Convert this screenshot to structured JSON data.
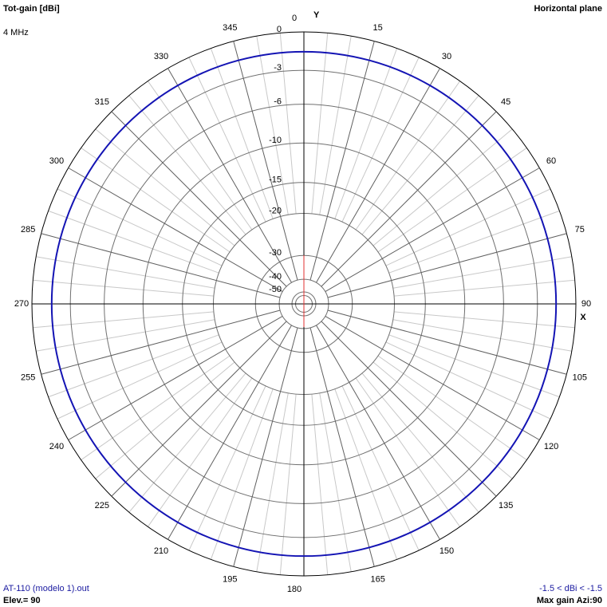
{
  "chart_data": {
    "type": "polar",
    "title": "Tot-gain [dBi]",
    "subtitle": "4 MHz",
    "plane": "Horizontal plane",
    "y_axis_label": "Y",
    "x_axis_label": "X",
    "range_label": "-1.5 < dBi < -1.5",
    "elevation_label": "Elev.= 90",
    "max_gain_label": "Max gain Azi:90",
    "rlim": [
      -50,
      0
    ],
    "rticks": [
      0,
      -3,
      -6,
      -10,
      -15,
      -20,
      -30,
      -40,
      -50
    ],
    "xticks": [
      0,
      15,
      30,
      45,
      60,
      75,
      90,
      105,
      120,
      135,
      150,
      165,
      180,
      195,
      210,
      225,
      240,
      255,
      270,
      285,
      300,
      315,
      330,
      345
    ],
    "grid": true,
    "series": [
      {
        "name": "AT-110 (modelo 1).out",
        "color": "#1414b4",
        "x": [
          0,
          15,
          30,
          45,
          60,
          75,
          90,
          105,
          120,
          135,
          150,
          165,
          180,
          195,
          210,
          225,
          240,
          255,
          270,
          285,
          300,
          315,
          330,
          345
        ],
        "values": [
          -1.5,
          -1.5,
          -1.5,
          -1.5,
          -1.5,
          -1.5,
          -1.5,
          -1.5,
          -1.5,
          -1.5,
          -1.5,
          -1.5,
          -1.5,
          -1.5,
          -1.5,
          -1.5,
          -1.5,
          -1.5,
          -1.5,
          -1.5,
          -1.5,
          -1.5,
          -1.5,
          -1.5
        ]
      }
    ]
  }
}
